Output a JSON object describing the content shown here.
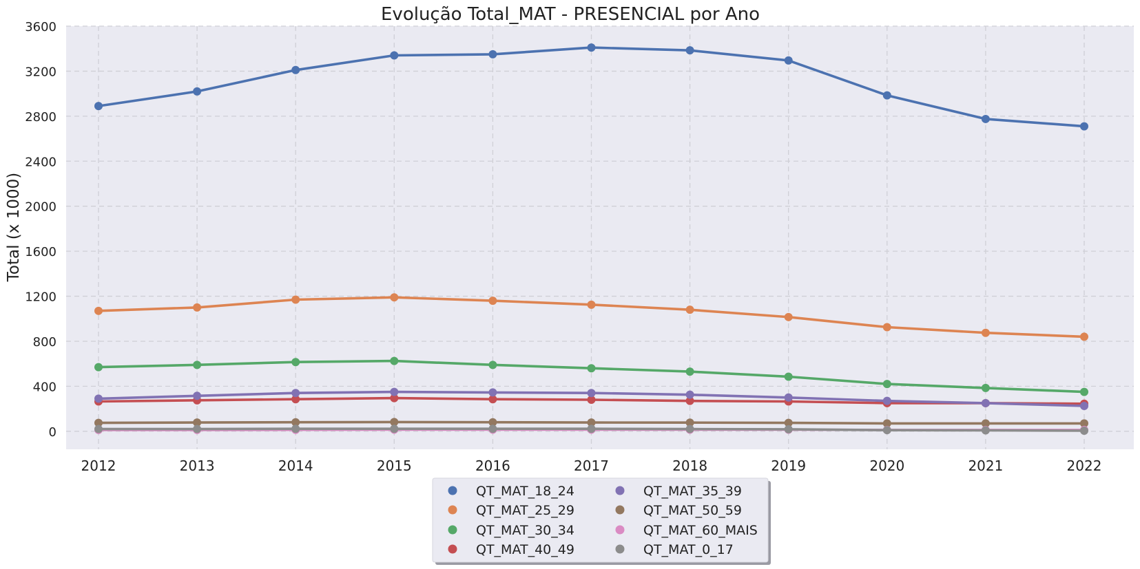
{
  "chart_data": {
    "type": "line",
    "title": "Evolução Total_MAT - PRESENCIAL por Ano",
    "xlabel": "",
    "ylabel": "Total (x 1000)",
    "categories": [
      "2012",
      "2013",
      "2014",
      "2015",
      "2016",
      "2017",
      "2018",
      "2019",
      "2020",
      "2021",
      "2022"
    ],
    "ylim": [
      -160,
      3600
    ],
    "yticks": [
      0,
      400,
      800,
      1200,
      1600,
      2000,
      2400,
      2800,
      3200,
      3600
    ],
    "grid": true,
    "legend_position": "bottom-center",
    "series": [
      {
        "name": "QT_MAT_18_24",
        "color": "#4c72b0",
        "values": [
          2890,
          3020,
          3210,
          3340,
          3350,
          3410,
          3385,
          3295,
          2985,
          2775,
          2710
        ]
      },
      {
        "name": "QT_MAT_25_29",
        "color": "#dd8452",
        "values": [
          1070,
          1100,
          1170,
          1190,
          1160,
          1125,
          1080,
          1015,
          925,
          875,
          840
        ]
      },
      {
        "name": "QT_MAT_30_34",
        "color": "#55a868",
        "values": [
          570,
          590,
          615,
          625,
          590,
          560,
          530,
          485,
          420,
          385,
          350
        ]
      },
      {
        "name": "QT_MAT_40_49",
        "color": "#c44e52",
        "values": [
          265,
          275,
          285,
          295,
          285,
          280,
          270,
          265,
          250,
          250,
          245
        ]
      },
      {
        "name": "QT_MAT_35_39",
        "color": "#8172b3",
        "values": [
          290,
          315,
          340,
          350,
          345,
          340,
          325,
          300,
          270,
          250,
          225
        ]
      },
      {
        "name": "QT_MAT_50_59",
        "color": "#937860",
        "values": [
          75,
          78,
          80,
          82,
          80,
          78,
          77,
          75,
          70,
          70,
          70
        ]
      },
      {
        "name": "QT_MAT_60_MAIS",
        "color": "#da8bc3",
        "values": [
          12,
          12,
          13,
          14,
          14,
          14,
          14,
          14,
          12,
          12,
          12
        ]
      },
      {
        "name": "QT_MAT_0_17",
        "color": "#8c8c8c",
        "values": [
          20,
          20,
          22,
          22,
          22,
          22,
          20,
          18,
          10,
          8,
          5
        ]
      }
    ],
    "legend_order": [
      "QT_MAT_18_24",
      "QT_MAT_35_39",
      "QT_MAT_25_29",
      "QT_MAT_50_59",
      "QT_MAT_30_34",
      "QT_MAT_60_MAIS",
      "QT_MAT_40_49",
      "QT_MAT_0_17"
    ]
  }
}
